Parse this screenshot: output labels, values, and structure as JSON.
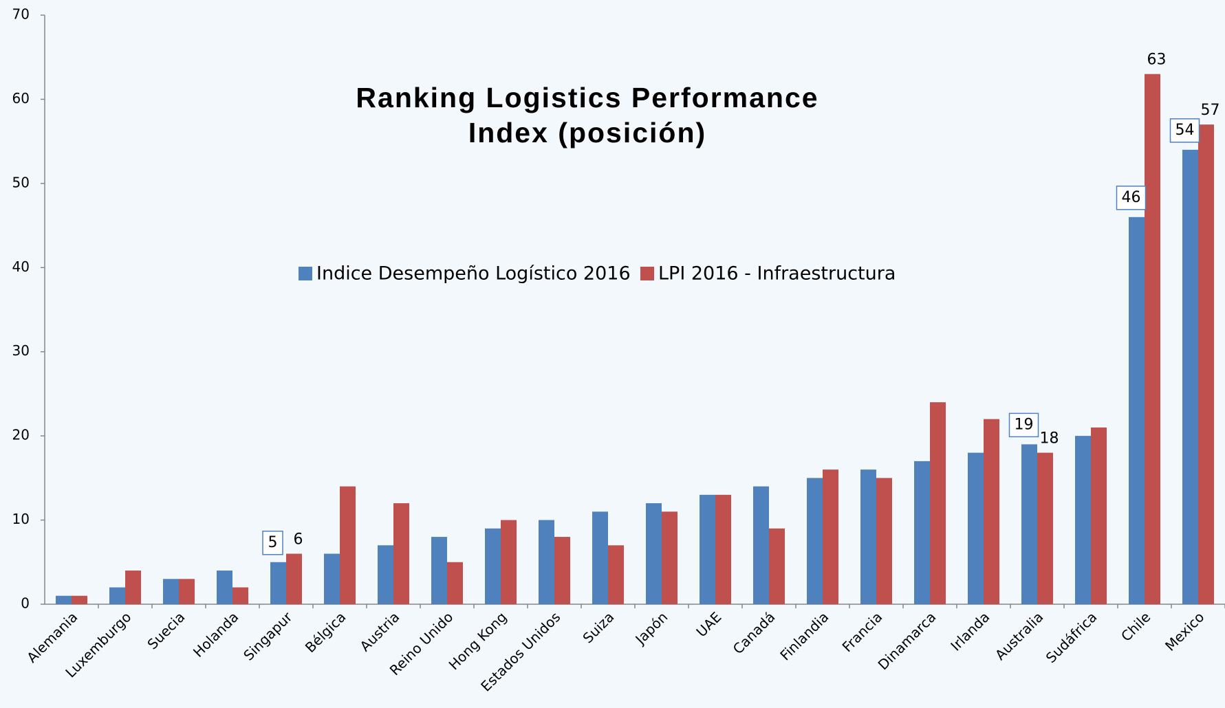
{
  "chart_data": {
    "type": "bar",
    "title": [
      "Ranking Logistics Performance",
      "Index (posición)"
    ],
    "categories": [
      "Alemania",
      "Luxemburgo",
      "Suecia",
      "Holanda",
      "Singapur",
      "Bélgica",
      "Austria",
      "Reino Unido",
      "Hong Kong",
      "Estados Unidos",
      "Suiza",
      "Japón",
      "UAE",
      "Canadá",
      "Finlandia",
      "Francia",
      "Dinamarca",
      "Irlanda",
      "Australia",
      "Sudáfrica",
      "Chile",
      "Mexico"
    ],
    "series": [
      {
        "name": "Indice Desempeño Logístico 2016",
        "color": "#4f81bd",
        "values": [
          1,
          2,
          3,
          4,
          5,
          6,
          7,
          8,
          9,
          10,
          11,
          12,
          13,
          14,
          15,
          16,
          17,
          18,
          19,
          20,
          46,
          54
        ],
        "label_indices": [
          4,
          18,
          20,
          21
        ],
        "label_box": true
      },
      {
        "name": "LPI 2016 - Infraestructura",
        "color": "#c0504d",
        "values": [
          1,
          4,
          3,
          2,
          6,
          14,
          12,
          5,
          10,
          8,
          7,
          11,
          13,
          9,
          16,
          15,
          24,
          22,
          18,
          21,
          63,
          57
        ],
        "label_indices": [
          4,
          18,
          20,
          21
        ],
        "label_box": false
      }
    ],
    "ylim": [
      0,
      70
    ],
    "yticks": [
      0,
      10,
      20,
      30,
      40,
      50,
      60,
      70
    ],
    "grid": false,
    "legend": "center"
  }
}
